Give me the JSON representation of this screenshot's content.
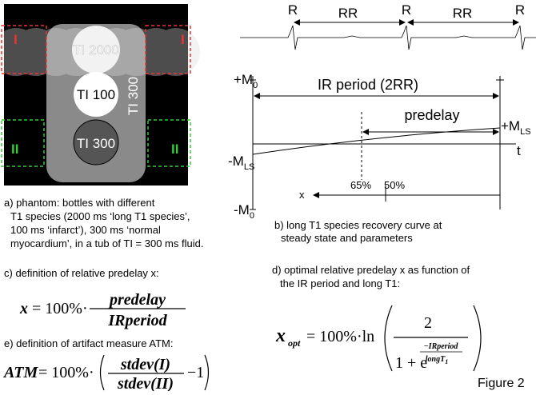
{
  "phantom": {
    "labels": [
      "TI 2000",
      "TI 100",
      "TI 300"
    ],
    "vertical_label": "TI 300",
    "regions": [
      "I",
      "I",
      "II",
      "II"
    ]
  },
  "ecg": {
    "r_labels": [
      "R",
      "R",
      "R"
    ],
    "rr_labels": [
      "RR",
      "RR"
    ]
  },
  "recovery_plot": {
    "y_labels": [
      {
        "main": "+M",
        "sub": "0"
      },
      {
        "main": "-M",
        "sub": "LS"
      },
      {
        "main": "-M",
        "sub": "0"
      }
    ],
    "ir_period": "IR period (2RR)",
    "predelay": "predelay",
    "end_label": {
      "main": "+M",
      "sub": "LS"
    },
    "time_axis": "t",
    "markers": [
      "65%",
      "50%"
    ],
    "x_label": "x"
  },
  "captions": {
    "a": [
      "a) phantom: bottles with different",
      "T1 species (2000 ms ‘long T1 species’,",
      "100 ms ‘infarct’), 300 ms ‘normal",
      "myocardium’, in a tub of TI = 300 ms fluid."
    ],
    "b": [
      "b) long T1 species recovery curve at",
      "steady state and parameters"
    ],
    "c": "c) definition of relative predelay x:",
    "d": [
      "d) optimal relative predelay x as function of",
      "the IR period and long T1:"
    ],
    "e": "e) definition of artifact measure ATM:"
  },
  "formulas": {
    "c": {
      "lhs": "x",
      "eq": "= 100%·",
      "num": "predelay",
      "den": "IRperiod"
    },
    "e": {
      "lhs": "ATM",
      "eq": "= 100%·",
      "num": "stdev(I)",
      "den": "stdev(II)",
      "tail": "−1"
    },
    "d": {
      "lhs": "x",
      "lhs_sub": "opt",
      "eq": "= 100%·ln",
      "num": "2",
      "den": "1 + e",
      "exp_num": "−IRperiod",
      "exp_den": "longT",
      "exp_den_sub": "1"
    }
  },
  "figure_label": "Figure 2"
}
